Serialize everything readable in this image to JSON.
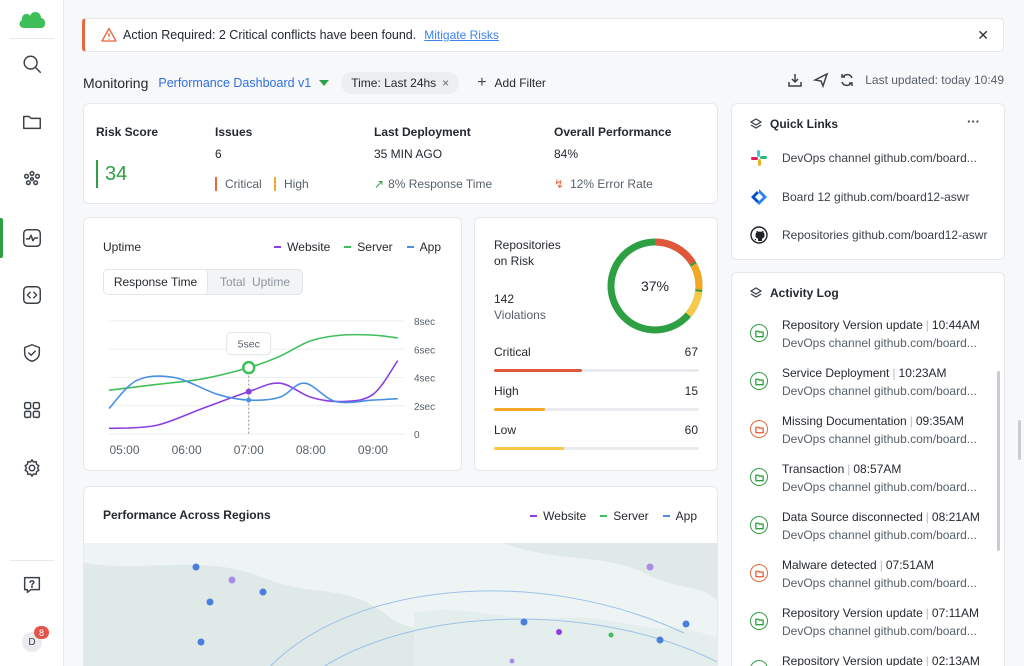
{
  "alert": {
    "message": "Action Required: 2 Critical conflicts have been found.",
    "link": "Mitigate Risks",
    "close": "✕"
  },
  "toolbar": {
    "section": "Monitoring",
    "dashboard": "Performance Dashboard v1",
    "time_filter": "Time: Last 24hs",
    "time_filter_remove": "×",
    "add_filter": "Add Filter",
    "last_updated": "Last updated: today 10:49"
  },
  "stats": {
    "risk": {
      "title": "Risk Score",
      "value": "34"
    },
    "issues": {
      "title": "Issues",
      "value": "6",
      "critical": "Critical",
      "high": "High"
    },
    "deployment": {
      "title": "Last Deployment",
      "value": "35 MIN AGO",
      "trend": "8% Response Time"
    },
    "performance": {
      "title": "Overall Performance",
      "value": "84%",
      "trend": "12% Error Rate"
    }
  },
  "uptime": {
    "title": "Uptime",
    "tabs": [
      "Response Time",
      "Total  Uptime"
    ],
    "tooltip": "5sec",
    "legend": [
      "Website",
      "Server",
      "App"
    ]
  },
  "chart_data": {
    "type": "line",
    "x": [
      "05:00",
      "06:00",
      "07:00",
      "08:00",
      "09:00"
    ],
    "yticks": [
      "8sec",
      "6sec",
      "4sec",
      "2sec",
      "0"
    ],
    "ylim": [
      0,
      8
    ],
    "series": [
      {
        "name": "Website",
        "color": "#8b3fe0",
        "x": [
          4.75,
          5.5,
          6.25,
          7.0,
          7.5,
          8.0,
          8.5,
          9.0,
          9.4
        ],
        "y": [
          0.4,
          0.6,
          1.8,
          3.0,
          3.6,
          2.6,
          2.3,
          2.8,
          5.2
        ]
      },
      {
        "name": "Server",
        "color": "#3fbf5a",
        "x": [
          4.75,
          5.5,
          6.25,
          7.0,
          7.5,
          8.0,
          8.5,
          9.0,
          9.4
        ],
        "y": [
          3.1,
          3.5,
          3.9,
          4.7,
          5.5,
          6.6,
          7.0,
          7.0,
          6.8
        ]
      },
      {
        "name": "App",
        "color": "#4a90e2",
        "x": [
          4.75,
          5.2,
          5.8,
          6.5,
          7.0,
          7.5,
          7.9,
          8.4,
          9.0,
          9.4
        ],
        "y": [
          1.8,
          3.8,
          4.0,
          2.8,
          2.4,
          2.6,
          3.6,
          2.3,
          2.4,
          2.5
        ]
      }
    ],
    "marker": {
      "x": 7.0,
      "series": "Server"
    }
  },
  "risk": {
    "title_line1": "Repositories",
    "title_line2": "on Risk",
    "violations_count": "142",
    "violations_label": "Violations",
    "donut_percent": "37%",
    "donut_value": 37,
    "rows": [
      {
        "label": "Critical",
        "value": "67",
        "fill": 0.43,
        "color": "#e0573b"
      },
      {
        "label": "High",
        "value": "15",
        "fill": 0.25,
        "color": "#f5a623"
      },
      {
        "label": "Low",
        "value": "60",
        "fill": 0.34,
        "color": "#f7c948"
      }
    ]
  },
  "regions": {
    "title": "Performance Across Regions",
    "legend": [
      "Website",
      "Server",
      "App"
    ]
  },
  "quick_links": {
    "title": "Quick Links",
    "more": "···",
    "items": [
      {
        "label": "DevOps channel github.com/board..."
      },
      {
        "label": "Board 12 github.com/board12-aswr"
      },
      {
        "label": "Repositories github.com/board12-aswr"
      }
    ]
  },
  "activity": {
    "title": "Activity Log",
    "items": [
      {
        "title": "Repository Version update",
        "time": "10:44AM",
        "sub": "DevOps channel github.com/board...",
        "status": "green"
      },
      {
        "title": "Service Deployment",
        "time": "10:23AM",
        "sub": "DevOps channel github.com/board...",
        "status": "green"
      },
      {
        "title": "Missing Documentation",
        "time": "09:35AM",
        "sub": "DevOps channel github.com/board...",
        "status": "orange"
      },
      {
        "title": "Transaction",
        "time": "08:57AM",
        "sub": "DevOps channel github.com/board...",
        "status": "green"
      },
      {
        "title": "Data Source disconnected",
        "time": "08:21AM",
        "sub": "DevOps channel github.com/board...",
        "status": "green"
      },
      {
        "title": "Malware detected",
        "time": "07:51AM",
        "sub": "DevOps channel github.com/board...",
        "status": "orange"
      },
      {
        "title": "Repository Version update",
        "time": "07:11AM",
        "sub": "DevOps channel github.com/board...",
        "status": "green"
      },
      {
        "title": "Repository Version update",
        "time": "02:13AM",
        "sub": "",
        "status": "green"
      }
    ]
  },
  "user": {
    "avatar": "D",
    "notifications": "8"
  },
  "colors": {
    "accent": "#2ea043",
    "critical": "#e0573b",
    "high": "#f5a623",
    "low": "#f7c948",
    "link": "#2f6fde"
  }
}
